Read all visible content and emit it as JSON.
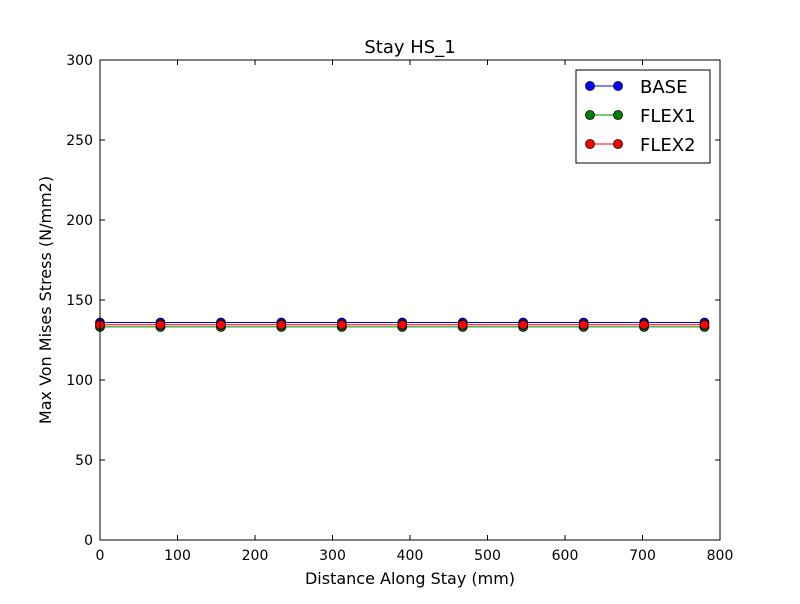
{
  "chart_data": {
    "type": "line",
    "title": "Stay HS_1",
    "xlabel": "Distance Along Stay (mm)",
    "ylabel": "Max Von Mises Stress (N/mm2)",
    "xlim": [
      0,
      800
    ],
    "ylim": [
      0,
      300
    ],
    "xticks": [
      "0",
      "100",
      "200",
      "300",
      "400",
      "500",
      "600",
      "700",
      "800"
    ],
    "yticks": [
      "0",
      "50",
      "100",
      "150",
      "200",
      "250",
      "300"
    ],
    "x": [
      0,
      78,
      156,
      234,
      312,
      390,
      468,
      546,
      624,
      702,
      780
    ],
    "series": [
      {
        "name": "BASE",
        "color": "#0000ff",
        "values": [
          135.9,
          135.9,
          135.9,
          135.9,
          135.9,
          135.9,
          135.9,
          135.9,
          135.9,
          135.9,
          135.9
        ]
      },
      {
        "name": "FLEX1",
        "color": "#008000",
        "values": [
          133.2,
          133.2,
          133.2,
          133.2,
          133.2,
          133.2,
          133.2,
          133.2,
          133.2,
          133.2,
          133.2
        ]
      },
      {
        "name": "FLEX2",
        "color": "#ff0000",
        "values": [
          134.5,
          134.5,
          134.5,
          134.5,
          134.5,
          134.5,
          134.5,
          134.5,
          134.5,
          134.5,
          134.5
        ]
      }
    ],
    "grid": false,
    "legend_position": "top-right"
  }
}
